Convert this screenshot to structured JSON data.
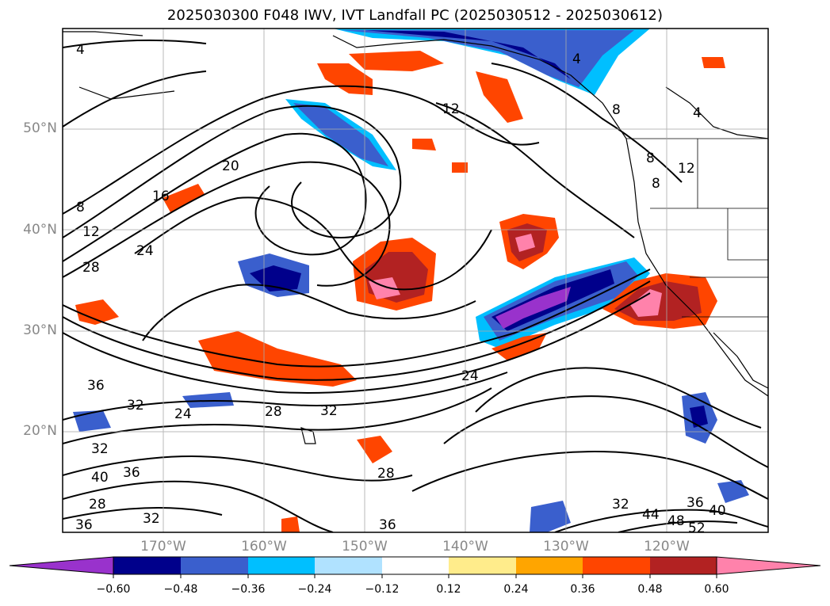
{
  "title": "2025030300 F048 IWV, IVT Landfall PC (2025030512 - 2025030612)",
  "map": {
    "lon_range": [
      -180,
      -110
    ],
    "lat_range": [
      10,
      60
    ],
    "lat_labels": [
      "50°N",
      "40°N",
      "30°N",
      "20°N"
    ],
    "lon_labels": [
      "170°W",
      "160°W",
      "150°W",
      "140°W",
      "130°W",
      "120°W"
    ],
    "gridlines": true
  },
  "contour_labels": [
    "4",
    "12",
    "4",
    "8",
    "4",
    "20",
    "16",
    "8",
    "8",
    "12",
    "8",
    "12",
    "24",
    "28",
    "24",
    "36",
    "32",
    "24",
    "28",
    "32",
    "32",
    "40",
    "36",
    "28",
    "36",
    "32",
    "28",
    "36",
    "32",
    "44",
    "36",
    "40",
    "48",
    "52"
  ],
  "colorbar": {
    "ticks": [
      "−0.60",
      "−0.48",
      "−0.36",
      "−0.24",
      "−0.12",
      "0.12",
      "0.24",
      "0.36",
      "0.48",
      "0.60"
    ],
    "colors": [
      "#9932cc",
      "#00008b",
      "#3a5fcd",
      "#00bfff",
      "#b0e2ff",
      "#ffffff",
      "#ffec8b",
      "#ffa500",
      "#ff4500",
      "#b22222",
      "#ff82ab"
    ]
  }
}
